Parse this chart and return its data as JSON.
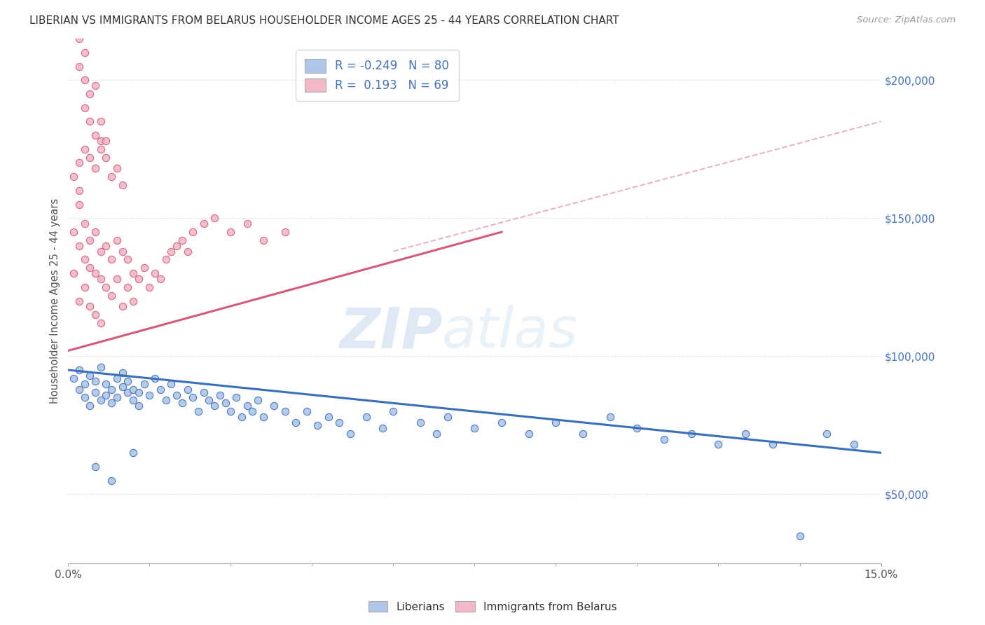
{
  "title": "LIBERIAN VS IMMIGRANTS FROM BELARUS HOUSEHOLDER INCOME AGES 25 - 44 YEARS CORRELATION CHART",
  "source": "Source: ZipAtlas.com",
  "ylabel": "Householder Income Ages 25 - 44 years",
  "xlim": [
    0.0,
    0.15
  ],
  "ylim": [
    25000,
    215000
  ],
  "yticks": [
    50000,
    100000,
    150000,
    200000
  ],
  "ytick_labels": [
    "$50,000",
    "$100,000",
    "$150,000",
    "$200,000"
  ],
  "xticks": [
    0.0,
    0.015,
    0.03,
    0.045,
    0.06,
    0.075,
    0.09,
    0.105,
    0.12,
    0.135,
    0.15
  ],
  "xtick_labels": [
    "0.0%",
    "",
    "",
    "",
    "",
    "",
    "",
    "",
    "",
    "",
    "15.0%"
  ],
  "legend_r_blue": "-0.249",
  "legend_n_blue": "80",
  "legend_r_pink": "0.193",
  "legend_n_pink": "69",
  "color_blue": "#aec6e8",
  "color_pink": "#f2b8c6",
  "line_blue": "#3a6fba",
  "line_pink": "#d45a7a",
  "line_dashed": "#e8a0b8",
  "watermark_zip": "ZIP",
  "watermark_atlas": "atlas",
  "blue_x": [
    0.001,
    0.002,
    0.002,
    0.003,
    0.003,
    0.004,
    0.004,
    0.005,
    0.005,
    0.006,
    0.006,
    0.007,
    0.007,
    0.008,
    0.008,
    0.009,
    0.009,
    0.01,
    0.01,
    0.011,
    0.011,
    0.012,
    0.012,
    0.013,
    0.013,
    0.014,
    0.015,
    0.016,
    0.017,
    0.018,
    0.019,
    0.02,
    0.021,
    0.022,
    0.023,
    0.024,
    0.025,
    0.026,
    0.027,
    0.028,
    0.029,
    0.03,
    0.031,
    0.032,
    0.033,
    0.034,
    0.035,
    0.036,
    0.038,
    0.04,
    0.042,
    0.044,
    0.046,
    0.048,
    0.05,
    0.052,
    0.055,
    0.058,
    0.06,
    0.065,
    0.068,
    0.07,
    0.075,
    0.08,
    0.085,
    0.09,
    0.095,
    0.1,
    0.105,
    0.11,
    0.115,
    0.12,
    0.125,
    0.13,
    0.135,
    0.14,
    0.145,
    0.005,
    0.008,
    0.012
  ],
  "blue_y": [
    92000,
    88000,
    95000,
    85000,
    90000,
    82000,
    93000,
    87000,
    91000,
    84000,
    96000,
    86000,
    90000,
    83000,
    88000,
    92000,
    85000,
    89000,
    94000,
    87000,
    91000,
    84000,
    88000,
    82000,
    87000,
    90000,
    86000,
    92000,
    88000,
    84000,
    90000,
    86000,
    83000,
    88000,
    85000,
    80000,
    87000,
    84000,
    82000,
    86000,
    83000,
    80000,
    85000,
    78000,
    82000,
    80000,
    84000,
    78000,
    82000,
    80000,
    76000,
    80000,
    75000,
    78000,
    76000,
    72000,
    78000,
    74000,
    80000,
    76000,
    72000,
    78000,
    74000,
    76000,
    72000,
    76000,
    72000,
    78000,
    74000,
    70000,
    72000,
    68000,
    72000,
    68000,
    35000,
    72000,
    68000,
    60000,
    55000,
    65000
  ],
  "pink_x": [
    0.001,
    0.001,
    0.002,
    0.002,
    0.002,
    0.003,
    0.003,
    0.003,
    0.004,
    0.004,
    0.004,
    0.005,
    0.005,
    0.005,
    0.006,
    0.006,
    0.006,
    0.007,
    0.007,
    0.008,
    0.008,
    0.009,
    0.009,
    0.01,
    0.01,
    0.011,
    0.011,
    0.012,
    0.012,
    0.013,
    0.014,
    0.015,
    0.016,
    0.017,
    0.018,
    0.019,
    0.02,
    0.021,
    0.022,
    0.023,
    0.025,
    0.027,
    0.03,
    0.033,
    0.036,
    0.04,
    0.002,
    0.003,
    0.004,
    0.005,
    0.006,
    0.007,
    0.008,
    0.009,
    0.01,
    0.003,
    0.004,
    0.005,
    0.006,
    0.007,
    0.002,
    0.003,
    0.002,
    0.003,
    0.004,
    0.005,
    0.006,
    0.001,
    0.002
  ],
  "pink_y": [
    145000,
    130000,
    155000,
    140000,
    120000,
    148000,
    135000,
    125000,
    142000,
    132000,
    118000,
    145000,
    130000,
    115000,
    138000,
    128000,
    112000,
    140000,
    125000,
    135000,
    122000,
    142000,
    128000,
    138000,
    118000,
    135000,
    125000,
    130000,
    120000,
    128000,
    132000,
    125000,
    130000,
    128000,
    135000,
    138000,
    140000,
    142000,
    138000,
    145000,
    148000,
    150000,
    145000,
    148000,
    142000,
    145000,
    170000,
    175000,
    172000,
    168000,
    178000,
    172000,
    165000,
    168000,
    162000,
    190000,
    185000,
    180000,
    175000,
    178000,
    205000,
    200000,
    215000,
    210000,
    195000,
    198000,
    185000,
    165000,
    160000
  ],
  "blue_line_x0": 0.0,
  "blue_line_x1": 0.15,
  "blue_line_y0": 95000,
  "blue_line_y1": 65000,
  "pink_line_x0": 0.0,
  "pink_line_x1": 0.08,
  "pink_line_y0": 102000,
  "pink_line_y1": 145000,
  "dash_line_x0": 0.06,
  "dash_line_x1": 0.15,
  "dash_line_y0": 138000,
  "dash_line_y1": 185000
}
